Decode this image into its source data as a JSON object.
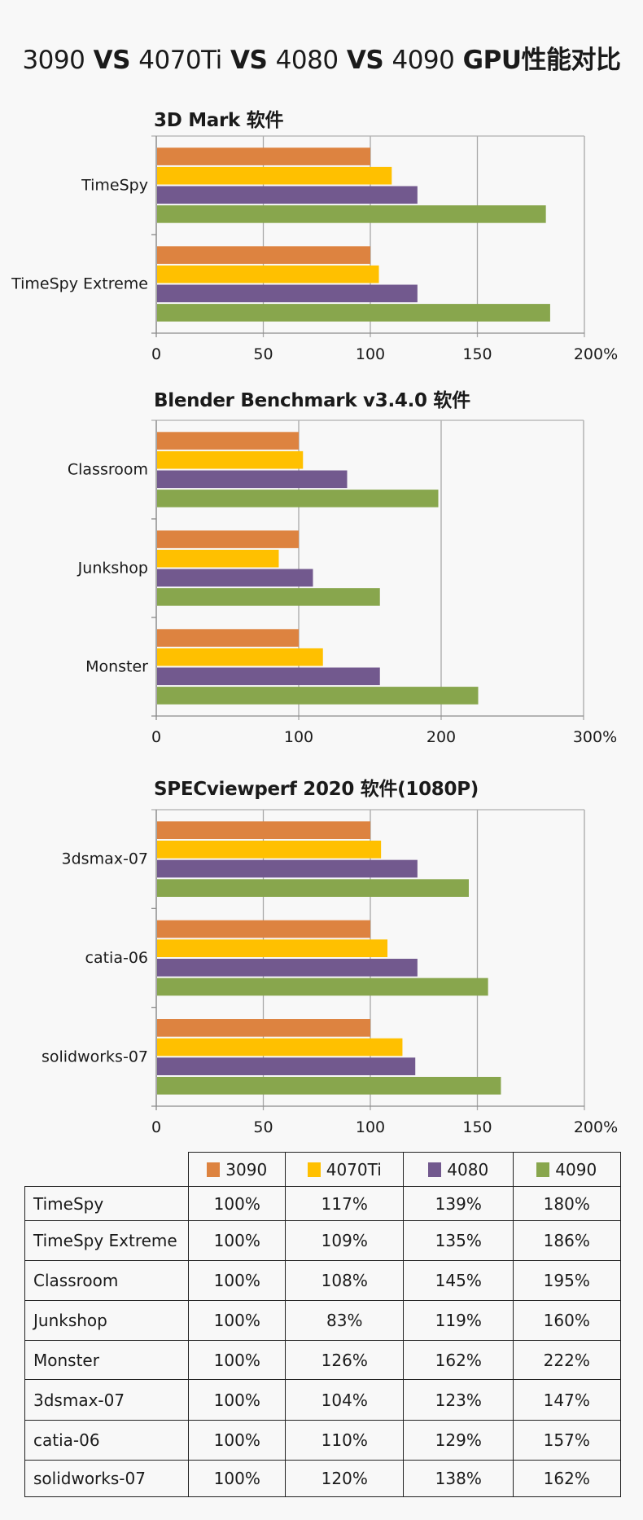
{
  "title": {
    "parts": [
      "3090",
      " VS ",
      "4070Ti",
      " VS ",
      "4080",
      " VS ",
      "4090",
      " GPU性能对比"
    ]
  },
  "series": [
    {
      "name": "3090",
      "color": "#dd8340"
    },
    {
      "name": "4070Ti",
      "color": "#ffc000"
    },
    {
      "name": "4080",
      "color": "#72598e"
    },
    {
      "name": "4090",
      "color": "#88a64d"
    }
  ],
  "chart_data": [
    {
      "type": "bar",
      "orientation": "horizontal",
      "title": "3D Mark 软件",
      "categories": [
        "TimeSpy",
        "TimeSpy Extreme"
      ],
      "series": [
        {
          "name": "3090",
          "values": [
            100,
            100
          ]
        },
        {
          "name": "4070Ti",
          "values": [
            110,
            104
          ]
        },
        {
          "name": "4080",
          "values": [
            122,
            122
          ]
        },
        {
          "name": "4090",
          "values": [
            182,
            184
          ]
        }
      ],
      "xlim": [
        0,
        200
      ],
      "xticks": [
        "0",
        "50",
        "100",
        "150",
        "200%"
      ],
      "xtick_values": [
        0,
        50,
        100,
        150,
        200
      ],
      "grid": true,
      "xlabel": "",
      "ylabel": ""
    },
    {
      "type": "bar",
      "orientation": "horizontal",
      "title": "Blender Benchmark v3.4.0 软件",
      "categories": [
        "Classroom",
        "Junkshop",
        "Monster"
      ],
      "series": [
        {
          "name": "3090",
          "values": [
            100,
            100,
            100
          ]
        },
        {
          "name": "4070Ti",
          "values": [
            103,
            86,
            117
          ]
        },
        {
          "name": "4080",
          "values": [
            134,
            110,
            157
          ]
        },
        {
          "name": "4090",
          "values": [
            198,
            157,
            226
          ]
        }
      ],
      "xlim": [
        0,
        300
      ],
      "xticks": [
        "0",
        "100",
        "200",
        "300%"
      ],
      "xtick_values": [
        0,
        100,
        200,
        300
      ],
      "grid": true,
      "xlabel": "",
      "ylabel": ""
    },
    {
      "type": "bar",
      "orientation": "horizontal",
      "title": "SPECviewperf 2020 软件(1080P)",
      "categories": [
        "3dsmax-07",
        "catia-06",
        "solidworks-07"
      ],
      "series": [
        {
          "name": "3090",
          "values": [
            100,
            100,
            100
          ]
        },
        {
          "name": "4070Ti",
          "values": [
            105,
            108,
            115
          ]
        },
        {
          "name": "4080",
          "values": [
            122,
            122,
            121
          ]
        },
        {
          "name": "4090",
          "values": [
            146,
            155,
            161
          ]
        }
      ],
      "xlim": [
        0,
        200
      ],
      "xticks": [
        "0",
        "50",
        "100",
        "150",
        "200%"
      ],
      "xtick_values": [
        0,
        50,
        100,
        150,
        200
      ],
      "grid": true,
      "xlabel": "",
      "ylabel": ""
    },
    {
      "type": "table",
      "columns": [
        "3090",
        "4070Ti",
        "4080",
        "4090"
      ],
      "rows": [
        {
          "label": "TimeSpy",
          "values": [
            "100%",
            "117%",
            "139%",
            "180%"
          ]
        },
        {
          "label": "TimeSpy Extreme",
          "values": [
            "100%",
            "109%",
            "135%",
            "186%"
          ]
        },
        {
          "label": "Classroom",
          "values": [
            "100%",
            "108%",
            "145%",
            "195%"
          ]
        },
        {
          "label": "Junkshop",
          "values": [
            "100%",
            "83%",
            "119%",
            "160%"
          ]
        },
        {
          "label": "Monster",
          "values": [
            "100%",
            "126%",
            "162%",
            "222%"
          ]
        },
        {
          "label": "3dsmax-07",
          "values": [
            "100%",
            "104%",
            "123%",
            "147%"
          ]
        },
        {
          "label": "catia-06",
          "values": [
            "100%",
            "110%",
            "129%",
            "157%"
          ]
        },
        {
          "label": "solidworks-07",
          "values": [
            "100%",
            "120%",
            "138%",
            "162%"
          ]
        }
      ]
    }
  ]
}
